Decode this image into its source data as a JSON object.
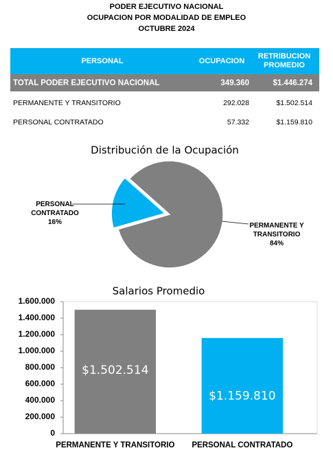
{
  "header": {
    "lines": [
      "PODER EJECUTIVO NACIONAL",
      "OCUPACION POR MODALIDAD DE EMPLEO",
      "OCTUBRE 2024"
    ]
  },
  "table": {
    "columns": [
      "PERSONAL",
      "OCUPACION",
      "RETRIBUCION PROMEDIO"
    ],
    "rows": [
      [
        "TOTAL PODER EJECUTIVO NACIONAL",
        "349.360",
        "$1.446.274"
      ],
      [
        "PERMANENTE Y TRANSITORIO",
        "292.028",
        "$1.502.514"
      ],
      [
        "PERSONAL CONTRATADO",
        "57.332",
        "$1.159.810"
      ]
    ]
  },
  "chart_data": [
    {
      "type": "pie",
      "title": "Distribución de la Ocupación",
      "categories": [
        "PERMANENTE Y TRANSITORIO",
        "PERSONAL CONTRATADO"
      ],
      "values": [
        84,
        16
      ],
      "value_labels": [
        "84%",
        "16%"
      ],
      "colors": [
        "#808080",
        "#00b0f0"
      ]
    },
    {
      "type": "bar",
      "title": "Salarios Promedio",
      "categories": [
        "PERMANENTE Y TRANSITORIO",
        "PERSONAL CONTRATADO"
      ],
      "values": [
        1502514,
        1159810
      ],
      "value_labels": [
        "$1.502.514",
        "$1.159.810"
      ],
      "colors": [
        "#808080",
        "#00b0f0"
      ],
      "ylim": [
        0,
        1600000
      ],
      "yticks": [
        0,
        {
          "value": 200000,
          "label": "200.000"
        },
        {
          "value": 400000,
          "label": "400.000"
        },
        {
          "value": 600000,
          "label": "600.000"
        },
        {
          "value": 800000,
          "label": "800.000"
        },
        {
          "value": 1000000,
          "label": "1.000.000"
        },
        {
          "value": 1200000,
          "label": "1.200.000"
        },
        {
          "value": 1400000,
          "label": "1.400.000"
        },
        {
          "value": 1600000,
          "label": "1.600.000"
        }
      ]
    }
  ]
}
